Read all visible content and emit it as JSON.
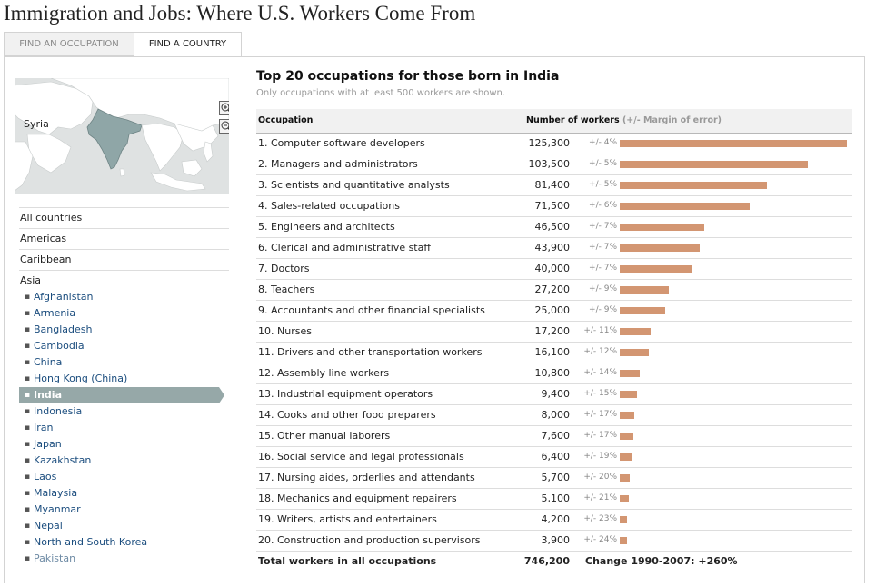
{
  "page": {
    "title": "Immigration and Jobs: Where U.S. Workers Come From"
  },
  "tabs": [
    {
      "label": "FIND AN OCCUPATION",
      "active": false
    },
    {
      "label": "FIND A COUNTRY",
      "active": true
    }
  ],
  "map": {
    "label": "Syria",
    "highlight_color": "#8fa6a7",
    "land_color": "#ffffff",
    "water_color": "#dfe2e2"
  },
  "zoom": {
    "in_icon": "zoom-in-icon",
    "out_icon": "zoom-out-icon"
  },
  "regions": [
    "All countries",
    "Americas",
    "Caribbean",
    "Asia"
  ],
  "countries": [
    "Afghanistan",
    "Armenia",
    "Bangladesh",
    "Cambodia",
    "China",
    "Hong Kong (China)",
    "India",
    "Indonesia",
    "Iran",
    "Japan",
    "Kazakhstan",
    "Laos",
    "Malaysia",
    "Myanmar",
    "Nepal",
    "North and South Korea",
    "Pakistan"
  ],
  "selected_country": "India",
  "table": {
    "title": "Top 20 occupations for those born in India",
    "subtitle": "Only occupations with at least 500 workers are shown.",
    "col_occupation": "Occupation",
    "col_workers": "Number of workers",
    "col_moe": "(+/- Margin of error)",
    "bar_color": "#d39672",
    "rows": [
      {
        "occupation": "1. Computer software developers",
        "workers": 125300,
        "workers_label": "125,300",
        "moe": "+/- 4%"
      },
      {
        "occupation": "2. Managers and administrators",
        "workers": 103500,
        "workers_label": "103,500",
        "moe": "+/- 5%"
      },
      {
        "occupation": "3. Scientists and quantitative analysts",
        "workers": 81400,
        "workers_label": "81,400",
        "moe": "+/- 5%"
      },
      {
        "occupation": "4. Sales-related occupations",
        "workers": 71500,
        "workers_label": "71,500",
        "moe": "+/- 6%"
      },
      {
        "occupation": "5. Engineers and architects",
        "workers": 46500,
        "workers_label": "46,500",
        "moe": "+/- 7%"
      },
      {
        "occupation": "6. Clerical and administrative staff",
        "workers": 43900,
        "workers_label": "43,900",
        "moe": "+/- 7%"
      },
      {
        "occupation": "7. Doctors",
        "workers": 40000,
        "workers_label": "40,000",
        "moe": "+/- 7%"
      },
      {
        "occupation": "8. Teachers",
        "workers": 27200,
        "workers_label": "27,200",
        "moe": "+/- 9%"
      },
      {
        "occupation": "9. Accountants and other financial specialists",
        "workers": 25000,
        "workers_label": "25,000",
        "moe": "+/- 9%"
      },
      {
        "occupation": "10. Nurses",
        "workers": 17200,
        "workers_label": "17,200",
        "moe": "+/- 11%"
      },
      {
        "occupation": "11. Drivers and other transportation workers",
        "workers": 16100,
        "workers_label": "16,100",
        "moe": "+/- 12%"
      },
      {
        "occupation": "12. Assembly line workers",
        "workers": 10800,
        "workers_label": "10,800",
        "moe": "+/- 14%"
      },
      {
        "occupation": "13. Industrial equipment operators",
        "workers": 9400,
        "workers_label": "9,400",
        "moe": "+/- 15%"
      },
      {
        "occupation": "14. Cooks and other food preparers",
        "workers": 8000,
        "workers_label": "8,000",
        "moe": "+/- 17%"
      },
      {
        "occupation": "15. Other manual laborers",
        "workers": 7600,
        "workers_label": "7,600",
        "moe": "+/- 17%"
      },
      {
        "occupation": "16. Social service and legal professionals",
        "workers": 6400,
        "workers_label": "6,400",
        "moe": "+/- 19%"
      },
      {
        "occupation": "17. Nursing aides, orderlies and attendants",
        "workers": 5700,
        "workers_label": "5,700",
        "moe": "+/- 20%"
      },
      {
        "occupation": "18. Mechanics and equipment repairers",
        "workers": 5100,
        "workers_label": "5,100",
        "moe": "+/- 21%"
      },
      {
        "occupation": "19. Writers, artists and entertainers",
        "workers": 4200,
        "workers_label": "4,200",
        "moe": "+/- 23%"
      },
      {
        "occupation": "20. Construction and production supervisors",
        "workers": 3900,
        "workers_label": "3,900",
        "moe": "+/- 24%"
      }
    ],
    "total": {
      "label": "Total workers in all occupations",
      "workers_label": "746,200",
      "change": "Change 1990-2007: +260%"
    }
  }
}
